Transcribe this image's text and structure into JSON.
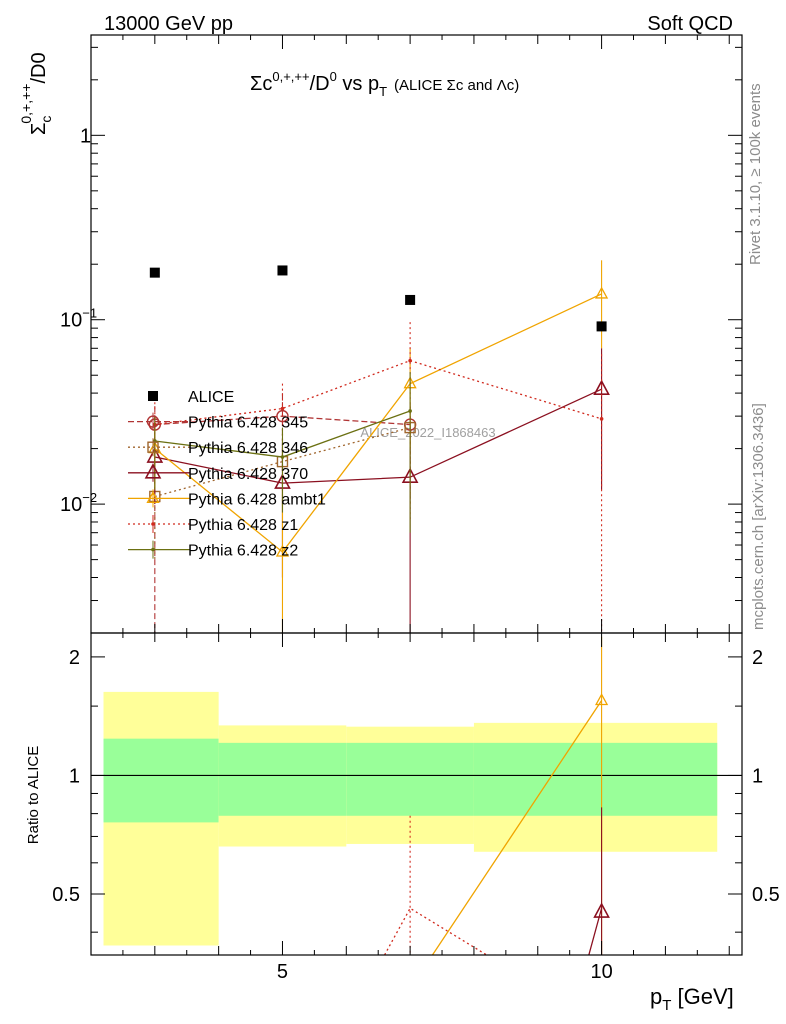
{
  "header": {
    "left": "13000 GeV pp",
    "right": "Soft QCD"
  },
  "side_labels": {
    "rivet": "Rivet 3.1.10, ≥ 100k events",
    "mcplots": "mcplots.cern.ch [arXiv:1306.3436]"
  },
  "watermark": "ALICE_2022_I1868463",
  "colors": {
    "data": "#000000",
    "p345": "#b03434",
    "p346": "#a0662e",
    "p370": "#8b1020",
    "ambt1": "#f0a400",
    "z1": "#d02a1e",
    "z2": "#6b7012",
    "band_inner": "#99ff99",
    "band_outer": "#ffff99"
  },
  "chart_data": [
    {
      "type": "scatter",
      "title": {
        "pre": "Σc",
        "sup1": "0,+,++",
        "mid": "/D",
        "sup2": "0",
        "vs": " vs p",
        "sub": "T",
        "paren": "(ALICE Σc and Λc)"
      },
      "ylabel": {
        "main": "Σ",
        "sub": "c",
        "sup": "0,+,++",
        "tail": "/D0"
      },
      "yscale": "log",
      "ylim": [
        0.002,
        3.5
      ],
      "xlim": [
        2,
        12.2
      ],
      "y_ticks": [
        {
          "v": 0.01,
          "base": "10",
          "exp": "−2"
        },
        {
          "v": 0.1,
          "base": "10",
          "exp": "−1"
        },
        {
          "v": 1,
          "base": "1",
          "exp": ""
        }
      ],
      "legend_position": "center-left",
      "data": {
        "name": "ALICE",
        "x": [
          3,
          5,
          7,
          10
        ],
        "y": [
          0.18,
          0.185,
          0.128,
          0.092
        ],
        "xbins": [
          [
            2,
            4
          ],
          [
            4,
            6
          ],
          [
            6,
            8
          ],
          [
            8,
            12
          ]
        ],
        "rel_err_inner": [
          0.24,
          0.21,
          0.21,
          0.21
        ],
        "rel_err_outer": [
          0.63,
          0.34,
          0.33,
          0.36
        ]
      },
      "series": [
        {
          "name": "Pythia 6.428 345",
          "key": "p345",
          "marker": "circle",
          "dash": "6,3",
          "x": [
            3,
            5,
            7
          ],
          "y": [
            0.027,
            0.03,
            0.027
          ],
          "err": [
            [
              0.0005,
              0.034
            ],
            [
              0.013,
              0.04
            ],
            [
              0.011,
              0.035
            ]
          ]
        },
        {
          "name": "Pythia 6.428 346",
          "key": "p346",
          "marker": "square",
          "dash": "2,3",
          "x": [
            3,
            5,
            7
          ],
          "y": [
            0.011,
            0.017,
            0.026
          ],
          "err": [
            [
              0.005,
              0.018
            ],
            [
              0.01,
              0.024
            ],
            [
              0.01,
              0.034
            ]
          ]
        },
        {
          "name": "Pythia 6.428 370",
          "key": "p370",
          "marker": "triangle",
          "dash": "",
          "x": [
            3,
            5,
            7,
            10
          ],
          "y": [
            0.018,
            0.013,
            0.014,
            0.042
          ],
          "err": [
            [
              0.01,
              0.025
            ],
            [
              0.004,
              0.021
            ],
            [
              0.0005,
              0.03
            ],
            [
              0.012,
              0.07
            ]
          ]
        },
        {
          "name": "Pythia 6.428 ambt1",
          "key": "ambt1",
          "marker": "triangle-small",
          "dash": "",
          "x": [
            3,
            5,
            7,
            10
          ],
          "y": [
            0.02,
            0.0055,
            0.045,
            0.138
          ],
          "err": [
            [
              0.012,
              0.028
            ],
            [
              0.0005,
              0.012
            ],
            [
              0.02,
              0.07
            ],
            [
              0.07,
              0.21
            ]
          ]
        },
        {
          "name": "Pythia 6.428 z1",
          "key": "z1",
          "marker": "dot",
          "dash": "2,3",
          "x": [
            3,
            5,
            7,
            10
          ],
          "y": [
            0.027,
            0.033,
            0.06,
            0.029
          ],
          "err": [
            [
              0.013,
              0.038
            ],
            [
              0.015,
              0.045
            ],
            [
              0.008,
              0.097
            ],
            [
              0.0005,
              0.065
            ]
          ]
        },
        {
          "name": "Pythia 6.428 z2",
          "key": "z2",
          "marker": "dot",
          "dash": "",
          "x": [
            3,
            5,
            7
          ],
          "y": [
            0.022,
            0.018,
            0.032
          ],
          "err": [
            [
              0.012,
              0.03
            ],
            [
              0.009,
              0.026
            ],
            [
              0.007,
              0.052
            ]
          ]
        }
      ]
    },
    {
      "type": "line",
      "ylabel": "Ratio to ALICE",
      "xlabel": {
        "main": "p",
        "sub": "T",
        "tail": " [GeV]"
      },
      "ylim": [
        0.35,
        2.3
      ],
      "xlim": [
        2,
        12.2
      ],
      "x_ticks": [
        5,
        10
      ],
      "y_ticks": [
        0.5,
        1,
        2
      ],
      "ratio_series": [
        {
          "key": "ambt1",
          "x": [
            7.35,
            10
          ],
          "y": [
            0.35,
            1.55
          ],
          "marker_x": 10,
          "marker_y": 1.55,
          "err_top": 2.25
        },
        {
          "key": "z1",
          "x": [
            6.6,
            7,
            8.2
          ],
          "y": [
            0.35,
            0.46,
            0.35
          ],
          "err_x": 7,
          "err_top": 0.79
        },
        {
          "key": "p370",
          "x": [
            9.8,
            10
          ],
          "y": [
            0.35,
            0.46
          ],
          "marker_x": 10,
          "marker_y": 0.45,
          "err_top": 0.83
        }
      ]
    }
  ]
}
